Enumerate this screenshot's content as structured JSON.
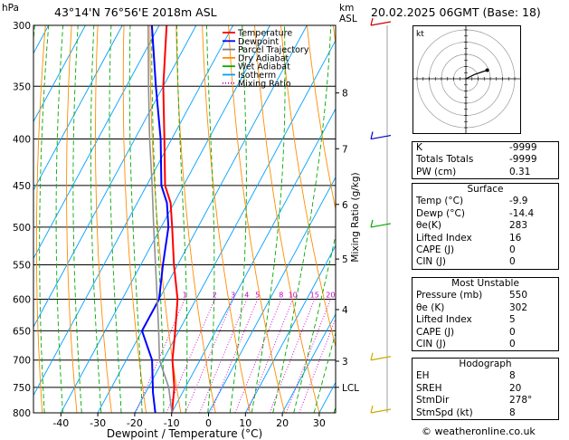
{
  "header": {
    "location": "43°14'N 76°56'E 2018m ASL",
    "datetime": "20.02.2025 06GMT (Base: 18)"
  },
  "axes": {
    "pressure_unit": "hPa",
    "km_unit_line1": "km",
    "km_unit_line2": "ASL",
    "xlabel": "Dewpoint / Temperature (°C)",
    "mixing_label": "Mixing Ratio (g/kg)",
    "lcl_label": "LCL",
    "hodo_unit": "kt"
  },
  "legend": [
    {
      "label": "Temperature",
      "color": "#ff0000",
      "style": "solid"
    },
    {
      "label": "Dewpoint",
      "color": "#0000ff",
      "style": "solid"
    },
    {
      "label": "Parcel Trajectory",
      "color": "#808080",
      "style": "solid"
    },
    {
      "label": "Dry Adiabat",
      "color": "#ff8c00",
      "style": "solid"
    },
    {
      "label": "Wet Adiabat",
      "color": "#00aa00",
      "style": "solid"
    },
    {
      "label": "Isotherm",
      "color": "#00a0ff",
      "style": "solid"
    },
    {
      "label": "Mixing Ratio",
      "color": "#cc00cc",
      "style": "dotted"
    }
  ],
  "chart_data": {
    "type": "line",
    "title": "43°14'N 76°56'E 2018m ASL",
    "xlabel": "Dewpoint / Temperature (°C)",
    "ylabel": "hPa",
    "y_scale": "log",
    "ylim": [
      800,
      300
    ],
    "xlim": [
      -45,
      35
    ],
    "x_ticks": [
      -40,
      -30,
      -20,
      -10,
      0,
      10,
      20,
      30
    ],
    "pressure_levels": [
      300,
      350,
      400,
      450,
      500,
      550,
      600,
      650,
      700,
      750,
      800
    ],
    "km_ticks": [
      {
        "label": "8",
        "p": 356
      },
      {
        "label": "7",
        "p": 410
      },
      {
        "label": "6",
        "p": 472
      },
      {
        "label": "5",
        "p": 542
      },
      {
        "label": "4",
        "p": 616
      },
      {
        "label": "3",
        "p": 702
      },
      {
        "label": "LCL",
        "p": 750
      }
    ],
    "mixing_ratio_labels": [
      {
        "label": "1",
        "value": 1
      },
      {
        "label": "2",
        "value": 2
      },
      {
        "label": "3",
        "value": 3
      },
      {
        "label": "4",
        "value": 4
      },
      {
        "label": "5",
        "value": 5
      },
      {
        "label": "8",
        "value": 8
      },
      {
        "label": "10",
        "value": 10
      },
      {
        "label": "15",
        "value": 15
      },
      {
        "label": "20",
        "value": 20
      },
      {
        "label": "25",
        "value": 25
      }
    ],
    "series": [
      {
        "name": "Temperature",
        "color": "#ff0000",
        "points": [
          [
            800,
            -9.9
          ],
          [
            750,
            -13
          ],
          [
            700,
            -17.5
          ],
          [
            650,
            -21
          ],
          [
            600,
            -25
          ],
          [
            550,
            -31
          ],
          [
            500,
            -37
          ],
          [
            470,
            -41
          ],
          [
            450,
            -45
          ],
          [
            400,
            -52
          ],
          [
            350,
            -60
          ],
          [
            300,
            -68
          ]
        ]
      },
      {
        "name": "Dewpoint",
        "color": "#0000ff",
        "points": [
          [
            800,
            -14.4
          ],
          [
            760,
            -18
          ],
          [
            700,
            -23
          ],
          [
            650,
            -30
          ],
          [
            600,
            -30
          ],
          [
            550,
            -34
          ],
          [
            500,
            -38
          ],
          [
            470,
            -42
          ],
          [
            450,
            -46
          ],
          [
            400,
            -53
          ],
          [
            350,
            -62
          ],
          [
            300,
            -72
          ]
        ]
      },
      {
        "name": "Parcel Trajectory",
        "color": "#909090",
        "points": [
          [
            800,
            -9.9
          ],
          [
            750,
            -14.5
          ],
          [
            700,
            -21
          ],
          [
            650,
            -25.5
          ],
          [
            600,
            -30.5
          ],
          [
            550,
            -36
          ],
          [
            500,
            -42
          ],
          [
            450,
            -48.5
          ],
          [
            400,
            -56
          ],
          [
            350,
            -64
          ],
          [
            300,
            -73
          ]
        ]
      }
    ],
    "wind_barbs": [
      {
        "p": 300,
        "color": "#cc0000"
      },
      {
        "p": 400,
        "color": "#0000cc"
      },
      {
        "p": 500,
        "color": "#00aa00"
      },
      {
        "p": 700,
        "color": "#ccaa00"
      },
      {
        "p": 800,
        "color": "#ccaa00"
      }
    ]
  },
  "hodograph": {
    "unit": "kt",
    "rings_kt": [
      10,
      20,
      30,
      40
    ],
    "trace": [
      [
        0,
        0
      ],
      [
        2,
        -1
      ],
      [
        5,
        -2
      ]
    ]
  },
  "indices": {
    "K": {
      "label": "K",
      "value": "-9999"
    },
    "TT": {
      "label": "Totals Totals",
      "value": "-9999"
    },
    "PW": {
      "label": "PW (cm)",
      "value": "0.31"
    }
  },
  "surface": {
    "title": "Surface",
    "rows": [
      {
        "label": "Temp (°C)",
        "value": "-9.9"
      },
      {
        "label": "Dewp (°C)",
        "value": "-14.4"
      },
      {
        "label": "θe(K)",
        "value": "283"
      },
      {
        "label": "Lifted Index",
        "value": "16"
      },
      {
        "label": "CAPE (J)",
        "value": "0"
      },
      {
        "label": "CIN (J)",
        "value": "0"
      }
    ]
  },
  "most_unstable": {
    "title": "Most Unstable",
    "rows": [
      {
        "label": "Pressure (mb)",
        "value": "550"
      },
      {
        "label": "θe (K)",
        "value": "302"
      },
      {
        "label": "Lifted Index",
        "value": "5"
      },
      {
        "label": "CAPE (J)",
        "value": "0"
      },
      {
        "label": "CIN (J)",
        "value": "0"
      }
    ]
  },
  "hodo_table": {
    "title": "Hodograph",
    "rows": [
      {
        "label": "EH",
        "value": "8"
      },
      {
        "label": "SREH",
        "value": "20"
      },
      {
        "label": "StmDir",
        "value": "278°"
      },
      {
        "label": "StmSpd (kt)",
        "value": "8"
      }
    ]
  },
  "copyright": "© weatheronline.co.uk"
}
